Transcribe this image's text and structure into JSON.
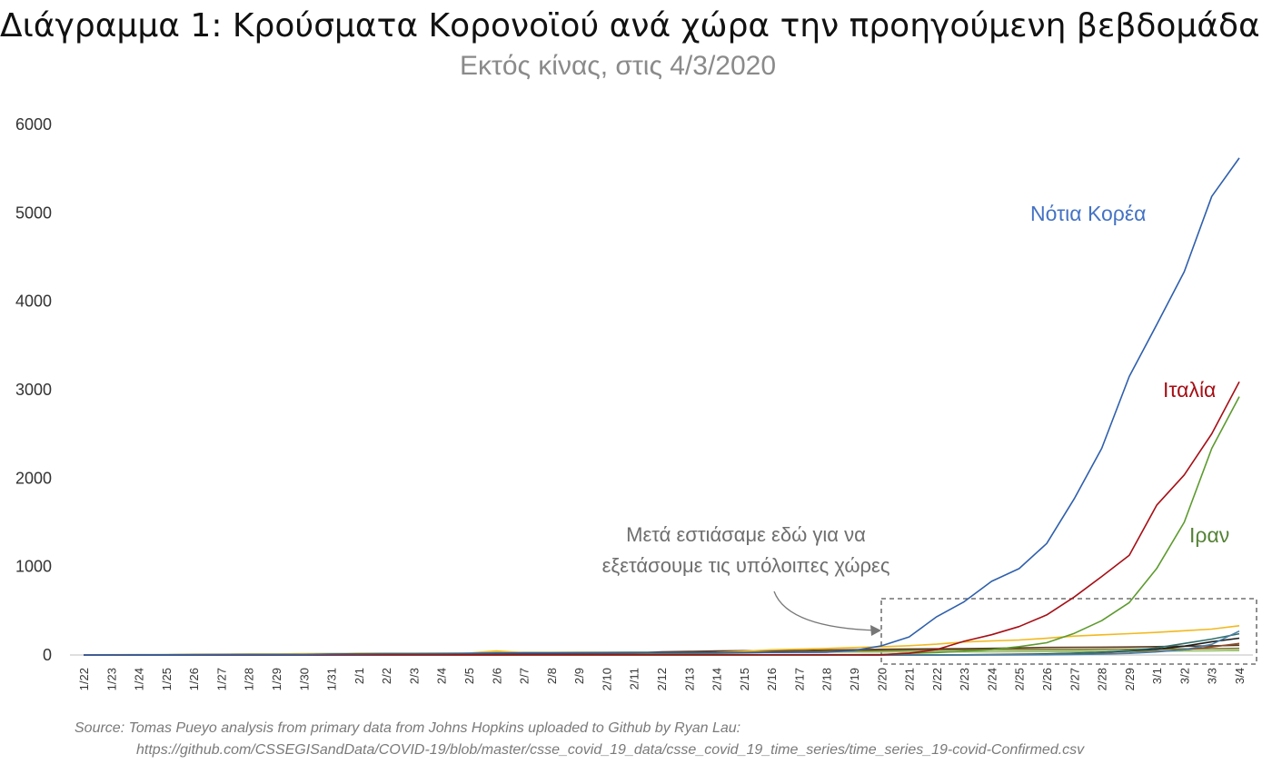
{
  "title": "Διάγραμμα 1: Κρούσματα Κορονοϊού ανά χώρα την προηγούμενη βεβδομάδα",
  "subtitle": "Εκτός κίνας, στις 4/3/2020",
  "annotation": {
    "line1": "Μετά εστιάσαμε εδώ για να",
    "line2": "εξετάσουμε τις υπόλοιπες χώρες"
  },
  "source": {
    "line1": "Source: Tomas Pueyo analysis from primary data from Johns Hopkins uploaded to Github by Ryan Lau:",
    "line2": "https://github.com/CSSEGISandData/COVID-19/blob/master/csse_covid_19_data/csse_covid_19_time_series/time_series_19-covid-Confirmed.csv"
  },
  "labels": {
    "korea": {
      "text": "Νότια Κορέα",
      "color": "#4472C4"
    },
    "italy": {
      "text": "Ιταλία",
      "color": "#A50F15"
    },
    "iran": {
      "text": "Ιραν",
      "color": "#548235"
    }
  },
  "chart_data": {
    "type": "line",
    "xlabel": "",
    "ylabel": "",
    "ylim": [
      0,
      6000
    ],
    "yticks": [
      0,
      1000,
      2000,
      3000,
      4000,
      5000,
      6000
    ],
    "grid": false,
    "categories": [
      "1/22",
      "1/23",
      "1/24",
      "1/25",
      "1/26",
      "1/27",
      "1/28",
      "1/29",
      "1/30",
      "1/31",
      "2/1",
      "2/2",
      "2/3",
      "2/4",
      "2/5",
      "2/6",
      "2/7",
      "2/8",
      "2/9",
      "2/10",
      "2/11",
      "2/12",
      "2/13",
      "2/14",
      "2/15",
      "2/16",
      "2/17",
      "2/18",
      "2/19",
      "2/20",
      "2/21",
      "2/22",
      "2/23",
      "2/24",
      "2/25",
      "2/26",
      "2/27",
      "2/28",
      "2/29",
      "3/1",
      "3/2",
      "3/3",
      "3/4"
    ],
    "series": [
      {
        "name": "Νότια Κορέα",
        "color": "#2E5FAC",
        "values": [
          1,
          1,
          2,
          2,
          3,
          4,
          4,
          4,
          4,
          11,
          12,
          15,
          15,
          16,
          19,
          23,
          24,
          24,
          25,
          27,
          28,
          28,
          28,
          28,
          28,
          29,
          30,
          31,
          51,
          104,
          204,
          433,
          602,
          833,
          977,
          1261,
          1766,
          2337,
          3150,
          3736,
          4335,
          5186,
          5621
        ]
      },
      {
        "name": "Ιταλία",
        "color": "#A50F15",
        "values": [
          0,
          0,
          0,
          0,
          0,
          0,
          0,
          0,
          0,
          2,
          2,
          2,
          2,
          2,
          2,
          2,
          3,
          3,
          3,
          3,
          3,
          3,
          3,
          3,
          3,
          3,
          3,
          3,
          3,
          3,
          20,
          62,
          155,
          229,
          322,
          453,
          655,
          888,
          1128,
          1694,
          2036,
          2502,
          3089
        ]
      },
      {
        "name": "Ιραν",
        "color": "#5C9A2E",
        "values": [
          0,
          0,
          0,
          0,
          0,
          0,
          0,
          0,
          0,
          0,
          0,
          0,
          0,
          0,
          0,
          0,
          0,
          0,
          0,
          0,
          0,
          0,
          0,
          0,
          0,
          0,
          0,
          0,
          2,
          5,
          18,
          28,
          43,
          61,
          95,
          139,
          245,
          388,
          593,
          978,
          1501,
          2336,
          2922
        ]
      },
      {
        "color": "#F2B81D",
        "values": [
          2,
          1,
          2,
          2,
          4,
          4,
          7,
          7,
          11,
          15,
          20,
          20,
          20,
          22,
          22,
          45,
          25,
          25,
          26,
          26,
          26,
          28,
          28,
          29,
          43,
          59,
          66,
          74,
          84,
          94,
          105,
          122,
          147,
          159,
          170,
          189,
          214,
          228,
          241,
          256,
          274,
          293,
          331
        ]
      },
      {
        "color": "#4A7FA8",
        "values": [
          0,
          0,
          0,
          0,
          0,
          0,
          0,
          0,
          0,
          0,
          0,
          0,
          0,
          0,
          0,
          0,
          0,
          0,
          0,
          0,
          0,
          0,
          0,
          0,
          0,
          0,
          0,
          0,
          0,
          0,
          0,
          0,
          0,
          2,
          2,
          2,
          5,
          10,
          18,
          35,
          60,
          120,
          270
        ]
      },
      {
        "color": "#2F6F6A",
        "values": [
          0,
          0,
          0,
          0,
          0,
          0,
          0,
          0,
          0,
          0,
          0,
          0,
          0,
          0,
          0,
          0,
          0,
          0,
          0,
          0,
          0,
          0,
          0,
          0,
          0,
          0,
          0,
          0,
          0,
          0,
          0,
          0,
          2,
          3,
          5,
          10,
          18,
          30,
          50,
          80,
          130,
          180,
          240
        ]
      },
      {
        "color": "#1B1B1B",
        "values": [
          0,
          0,
          0,
          0,
          0,
          0,
          0,
          0,
          0,
          0,
          0,
          0,
          0,
          0,
          0,
          0,
          0,
          0,
          0,
          0,
          0,
          0,
          0,
          0,
          0,
          0,
          0,
          0,
          0,
          0,
          0,
          0,
          2,
          4,
          8,
          12,
          20,
          30,
          45,
          65,
          100,
          150,
          190
        ]
      },
      {
        "color": "#8B4A2A",
        "values": [
          0,
          0,
          0,
          0,
          0,
          0,
          0,
          0,
          0,
          0,
          0,
          0,
          0,
          0,
          0,
          0,
          0,
          0,
          0,
          0,
          0,
          0,
          0,
          0,
          0,
          0,
          0,
          0,
          0,
          0,
          0,
          0,
          0,
          1,
          2,
          4,
          8,
          14,
          22,
          40,
          60,
          90,
          130
        ]
      },
      {
        "color": "#5B3A1E",
        "values": [
          1,
          1,
          1,
          2,
          3,
          4,
          4,
          7,
          8,
          8,
          9,
          9,
          10,
          10,
          12,
          12,
          12,
          14,
          15,
          18,
          20,
          35,
          40,
          45,
          48,
          48,
          50,
          55,
          60,
          65,
          68,
          70,
          72,
          75,
          80,
          85,
          86,
          88,
          90,
          95,
          100,
          104,
          110
        ]
      },
      {
        "color": "#7A7A2A",
        "values": [
          2,
          2,
          2,
          2,
          2,
          2,
          3,
          3,
          5,
          5,
          5,
          6,
          6,
          6,
          7,
          7,
          8,
          8,
          9,
          10,
          12,
          15,
          18,
          20,
          25,
          30,
          35,
          40,
          45,
          50,
          55,
          58,
          60,
          62,
          63,
          63,
          63,
          65,
          66,
          68,
          70,
          72,
          75
        ]
      },
      {
        "color": "#9DC472",
        "values": [
          2,
          3,
          4,
          5,
          8,
          8,
          12,
          12,
          14,
          16,
          18,
          18,
          18,
          19,
          21,
          28,
          30,
          30,
          32,
          32,
          33,
          33,
          33,
          34,
          34,
          34,
          35,
          35,
          36,
          36,
          37,
          38,
          38,
          39,
          40,
          40,
          41,
          42,
          43,
          45,
          46,
          48,
          50
        ]
      },
      {
        "color": "#70AD47",
        "values": [
          1,
          1,
          1,
          3,
          4,
          5,
          7,
          8,
          10,
          11,
          12,
          12,
          13,
          16,
          18,
          20,
          22,
          24,
          26,
          28,
          30,
          30,
          32,
          32,
          32,
          33,
          34,
          34,
          35,
          35,
          36,
          36,
          37,
          37,
          38,
          38,
          39,
          40,
          42,
          44,
          46,
          48,
          50
        ]
      }
    ]
  }
}
